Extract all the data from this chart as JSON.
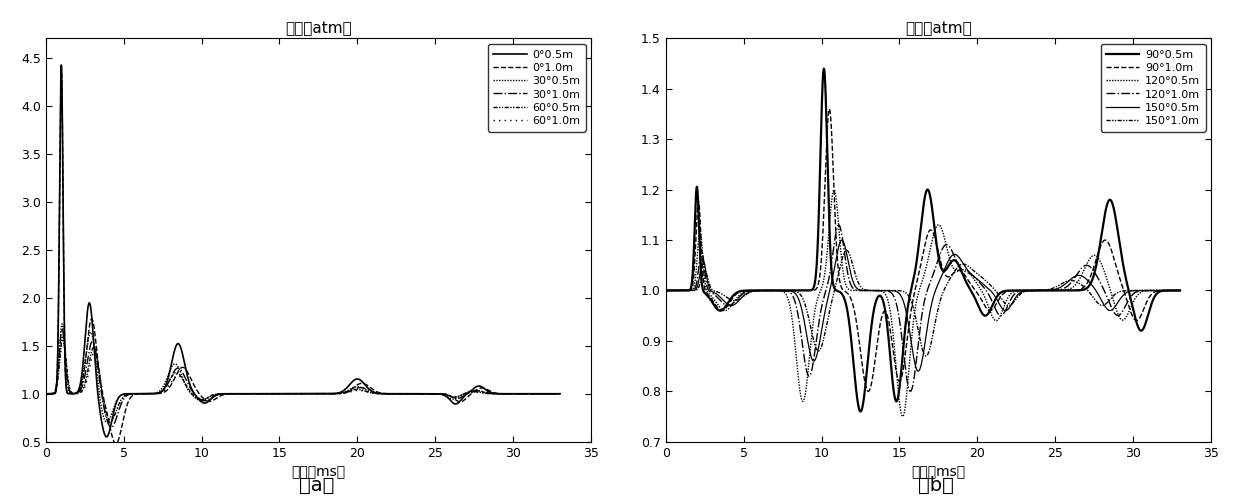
{
  "title_a": "压力（atm）",
  "title_b": "压力（atm）",
  "xlabel_a": "时间（ms）",
  "xlabel_b": "时间（ms）",
  "label_a": "（a）",
  "label_b": "（b）",
  "xlim": [
    0,
    35
  ],
  "ylim_a": [
    0.5,
    4.7
  ],
  "ylim_b": [
    0.7,
    1.5
  ],
  "xticks": [
    0,
    5,
    10,
    15,
    20,
    25,
    30,
    35
  ],
  "yticks_a": [
    0.5,
    1.0,
    1.5,
    2.0,
    2.5,
    3.0,
    3.5,
    4.0,
    4.5
  ],
  "yticks_b": [
    0.7,
    0.8,
    0.9,
    1.0,
    1.1,
    1.2,
    1.3,
    1.4,
    1.5
  ],
  "legend_a": [
    "0°0.5m",
    "0°1.0m",
    "30°0.5m",
    "30°1.0m",
    "60°0.5m",
    "60°1.0m"
  ],
  "legend_b": [
    "90°0.5m",
    "90°1.0m",
    "120°0.5m",
    "120°1.0m",
    "150°0.5m",
    "150°1.0m"
  ],
  "font_size": 10,
  "title_font_size": 11,
  "tick_fontsize": 9
}
